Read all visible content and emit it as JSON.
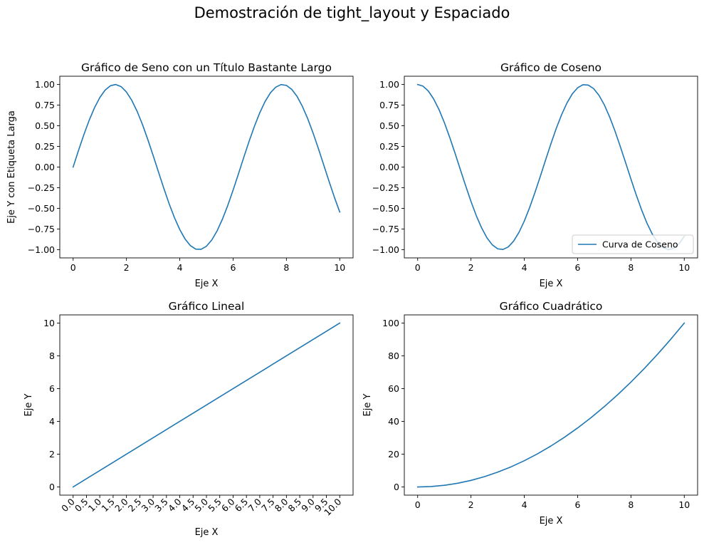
{
  "figure": {
    "suptitle": "Demostración de tight_layout y Espaciado",
    "line_color": "#1f77b4"
  },
  "chart_data": [
    {
      "type": "line",
      "title": "Gráfico de Seno con un Título Bastante Largo",
      "xlabel": "Eje X",
      "ylabel": "Eje Y con Etiqueta Larga",
      "xlim": [
        -0.5,
        10.5
      ],
      "ylim": [
        -1.1,
        1.1
      ],
      "xticks": [
        0,
        2,
        4,
        6,
        8,
        10
      ],
      "xtick_labels": [
        "0",
        "2",
        "4",
        "6",
        "8",
        "10"
      ],
      "xtick_rotation": 0,
      "yticks": [
        -1.0,
        -0.75,
        -0.5,
        -0.25,
        0.0,
        0.25,
        0.5,
        0.75,
        1.0
      ],
      "ytick_labels": [
        "−1.00",
        "−0.75",
        "−0.50",
        "−0.25",
        "0.00",
        "0.25",
        "0.50",
        "0.75",
        "1.00"
      ],
      "series": [
        {
          "color": "#1f77b4",
          "x": [
            0,
            0.2,
            0.4,
            0.6,
            0.8,
            1.0,
            1.2,
            1.4,
            1.6,
            1.8,
            2.0,
            2.2,
            2.4,
            2.6,
            2.8,
            3.0,
            3.2,
            3.4,
            3.6,
            3.8,
            4.0,
            4.2,
            4.4,
            4.6,
            4.8,
            5.0,
            5.2,
            5.4,
            5.6,
            5.8,
            6.0,
            6.2,
            6.4,
            6.6,
            6.8,
            7.0,
            7.2,
            7.4,
            7.6,
            7.8,
            8.0,
            8.2,
            8.4,
            8.6,
            8.8,
            9.0,
            9.2,
            9.4,
            9.6,
            9.8,
            10.0
          ],
          "y": [
            0.0,
            0.199,
            0.389,
            0.565,
            0.717,
            0.841,
            0.932,
            0.985,
            1.0,
            0.974,
            0.909,
            0.808,
            0.675,
            0.516,
            0.335,
            0.141,
            -0.058,
            -0.256,
            -0.443,
            -0.612,
            -0.757,
            -0.872,
            -0.952,
            -0.994,
            -0.996,
            -0.959,
            -0.883,
            -0.773,
            -0.631,
            -0.465,
            -0.279,
            -0.083,
            0.117,
            0.312,
            0.494,
            0.657,
            0.794,
            0.899,
            0.968,
            0.999,
            0.989,
            0.941,
            0.855,
            0.734,
            0.585,
            0.412,
            0.223,
            0.025,
            -0.174,
            -0.366,
            -0.544
          ]
        }
      ]
    },
    {
      "type": "line",
      "title": "Gráfico de Coseno",
      "xlabel": "Eje X",
      "ylabel": "",
      "xlim": [
        -0.5,
        10.5
      ],
      "ylim": [
        -1.1,
        1.1
      ],
      "xticks": [
        0,
        2,
        4,
        6,
        8,
        10
      ],
      "xtick_labels": [
        "0",
        "2",
        "4",
        "6",
        "8",
        "10"
      ],
      "xtick_rotation": 0,
      "yticks": [
        -1.0,
        -0.75,
        -0.5,
        -0.25,
        0.0,
        0.25,
        0.5,
        0.75,
        1.0
      ],
      "ytick_labels": [
        "−1.00",
        "−0.75",
        "−0.50",
        "−0.25",
        "0.00",
        "0.25",
        "0.50",
        "0.75",
        "1.00"
      ],
      "legend": {
        "location": "lower right",
        "entries": [
          "Curva de Coseno"
        ]
      },
      "series": [
        {
          "name": "Curva de Coseno",
          "color": "#1f77b4",
          "x": [
            0,
            0.2,
            0.4,
            0.6,
            0.8,
            1.0,
            1.2,
            1.4,
            1.6,
            1.8,
            2.0,
            2.2,
            2.4,
            2.6,
            2.8,
            3.0,
            3.2,
            3.4,
            3.6,
            3.8,
            4.0,
            4.2,
            4.4,
            4.6,
            4.8,
            5.0,
            5.2,
            5.4,
            5.6,
            5.8,
            6.0,
            6.2,
            6.4,
            6.6,
            6.8,
            7.0,
            7.2,
            7.4,
            7.6,
            7.8,
            8.0,
            8.2,
            8.4,
            8.6,
            8.8,
            9.0,
            9.2,
            9.4,
            9.6,
            9.8,
            10.0
          ],
          "y": [
            1.0,
            0.98,
            0.921,
            0.825,
            0.697,
            0.54,
            0.362,
            0.17,
            -0.029,
            -0.227,
            -0.416,
            -0.589,
            -0.737,
            -0.857,
            -0.942,
            -0.99,
            -0.998,
            -0.967,
            -0.897,
            -0.791,
            -0.654,
            -0.49,
            -0.307,
            -0.113,
            0.087,
            0.284,
            0.469,
            0.635,
            0.776,
            0.886,
            0.96,
            0.997,
            0.993,
            0.95,
            0.869,
            0.754,
            0.608,
            0.438,
            0.249,
            0.054,
            -0.146,
            -0.339,
            -0.519,
            -0.679,
            -0.811,
            -0.911,
            -0.975,
            -1.0,
            -0.985,
            -0.931,
            -0.839
          ]
        }
      ]
    },
    {
      "type": "line",
      "title": "Gráfico Lineal",
      "xlabel": "Eje X",
      "ylabel": "Eje Y",
      "xlim": [
        -0.5,
        10.5
      ],
      "ylim": [
        -0.5,
        10.5
      ],
      "xticks": [
        0,
        0.5,
        1,
        1.5,
        2,
        2.5,
        3,
        3.5,
        4,
        4.5,
        5,
        5.5,
        6,
        6.5,
        7,
        7.5,
        8,
        8.5,
        9,
        9.5,
        10
      ],
      "xtick_labels": [
        "0.0",
        "0.5",
        "1.0",
        "1.5",
        "2.0",
        "2.5",
        "3.0",
        "3.5",
        "4.0",
        "4.5",
        "5.0",
        "5.5",
        "6.0",
        "6.5",
        "7.0",
        "7.5",
        "8.0",
        "8.5",
        "9.0",
        "9.5",
        "10.0"
      ],
      "xtick_rotation": 45,
      "yticks": [
        0,
        2,
        4,
        6,
        8,
        10
      ],
      "ytick_labels": [
        "0",
        "2",
        "4",
        "6",
        "8",
        "10"
      ],
      "series": [
        {
          "color": "#1f77b4",
          "x": [
            0,
            10
          ],
          "y": [
            0,
            10
          ]
        }
      ]
    },
    {
      "type": "line",
      "title": "Gráfico Cuadrático",
      "xlabel": "Eje X",
      "ylabel": "Eje Y",
      "xlim": [
        -0.5,
        10.5
      ],
      "ylim": [
        -5,
        105
      ],
      "xticks": [
        0,
        2,
        4,
        6,
        8,
        10
      ],
      "xtick_labels": [
        "0",
        "2",
        "4",
        "6",
        "8",
        "10"
      ],
      "xtick_rotation": 0,
      "yticks": [
        0,
        20,
        40,
        60,
        80,
        100
      ],
      "ytick_labels": [
        "0",
        "20",
        "40",
        "60",
        "80",
        "100"
      ],
      "series": [
        {
          "color": "#1f77b4",
          "x": [
            0,
            0.5,
            1,
            1.5,
            2,
            2.5,
            3,
            3.5,
            4,
            4.5,
            5,
            5.5,
            6,
            6.5,
            7,
            7.5,
            8,
            8.5,
            9,
            9.5,
            10
          ],
          "y": [
            0,
            0.25,
            1,
            2.25,
            4,
            6.25,
            9,
            12.25,
            16,
            20.25,
            25,
            30.25,
            36,
            42.25,
            49,
            56.25,
            64,
            72.25,
            81,
            90.25,
            100
          ]
        }
      ]
    }
  ]
}
